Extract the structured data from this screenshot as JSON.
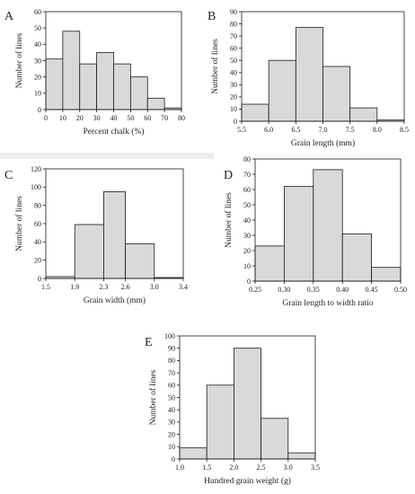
{
  "chart_data": [
    {
      "type": "bar",
      "label": "A",
      "xlabel": "Percent chalk (%)",
      "ylabel": "Number of lines",
      "bin_edges": [
        0,
        10,
        20,
        30,
        40,
        50,
        60,
        70,
        80
      ],
      "values": [
        31,
        48,
        28,
        35,
        28,
        20,
        7,
        1
      ],
      "x_ticks": [
        "0",
        "10",
        "20",
        "30",
        "40",
        "50",
        "60",
        "70",
        "80"
      ],
      "y_ticks": [
        "0",
        "10",
        "20",
        "30",
        "40",
        "50",
        "60"
      ],
      "ylim": [
        0,
        60
      ]
    },
    {
      "type": "bar",
      "label": "B",
      "xlabel": "Grain length (mm)",
      "ylabel": "Number of lines",
      "bin_edges": [
        5.5,
        6.0,
        6.5,
        7.0,
        7.5,
        8.0,
        8.5
      ],
      "values": [
        14,
        50,
        77,
        45,
        11,
        1
      ],
      "x_ticks": [
        "5.5",
        "6.0",
        "6.5",
        "7.0",
        "7.5",
        "8.0",
        "8.5"
      ],
      "y_ticks": [
        "0",
        "10",
        "20",
        "30",
        "40",
        "50",
        "60",
        "70",
        "80",
        "90"
      ],
      "ylim": [
        0,
        90
      ]
    },
    {
      "type": "bar",
      "label": "C",
      "xlabel": "Grain width (mm)",
      "ylabel": "Number of lines",
      "bin_edges": [
        1.5,
        1.9,
        2.3,
        2.6,
        3.0,
        3.4
      ],
      "values": [
        2,
        59,
        95,
        38,
        1
      ],
      "x_ticks": [
        "1.5",
        "1.9",
        "2.3",
        "2.6",
        "3.0",
        "3.4"
      ],
      "y_ticks": [
        "0",
        "20",
        "40",
        "60",
        "80",
        "100",
        "120"
      ],
      "ylim": [
        0,
        120
      ]
    },
    {
      "type": "bar",
      "label": "D",
      "xlabel": "Grain length to width ratio",
      "ylabel": "Number of lines",
      "bin_edges": [
        0.25,
        0.3,
        0.35,
        0.4,
        0.45,
        0.5
      ],
      "values": [
        23,
        62,
        73,
        31,
        9
      ],
      "x_ticks": [
        "0.25",
        "0.30",
        "0.35",
        "0.40",
        "0.45",
        "0.50"
      ],
      "y_ticks": [
        "0",
        "10",
        "20",
        "30",
        "40",
        "50",
        "60",
        "70",
        "80"
      ],
      "ylim": [
        0,
        80
      ]
    },
    {
      "type": "bar",
      "label": "E",
      "xlabel": "Hundred grain weight (g)",
      "ylabel": "Number of lines",
      "bin_edges": [
        1.0,
        1.5,
        2.0,
        2.5,
        3.0,
        3.5
      ],
      "values": [
        9,
        60,
        90,
        33,
        5
      ],
      "x_ticks": [
        "1.0",
        "1.5",
        "2.0",
        "2.5",
        "3.0",
        "3.5"
      ],
      "y_ticks": [
        "0",
        "10",
        "20",
        "30",
        "40",
        "50",
        "60",
        "70",
        "80",
        "90",
        "100"
      ],
      "ylim": [
        0,
        100
      ]
    }
  ]
}
